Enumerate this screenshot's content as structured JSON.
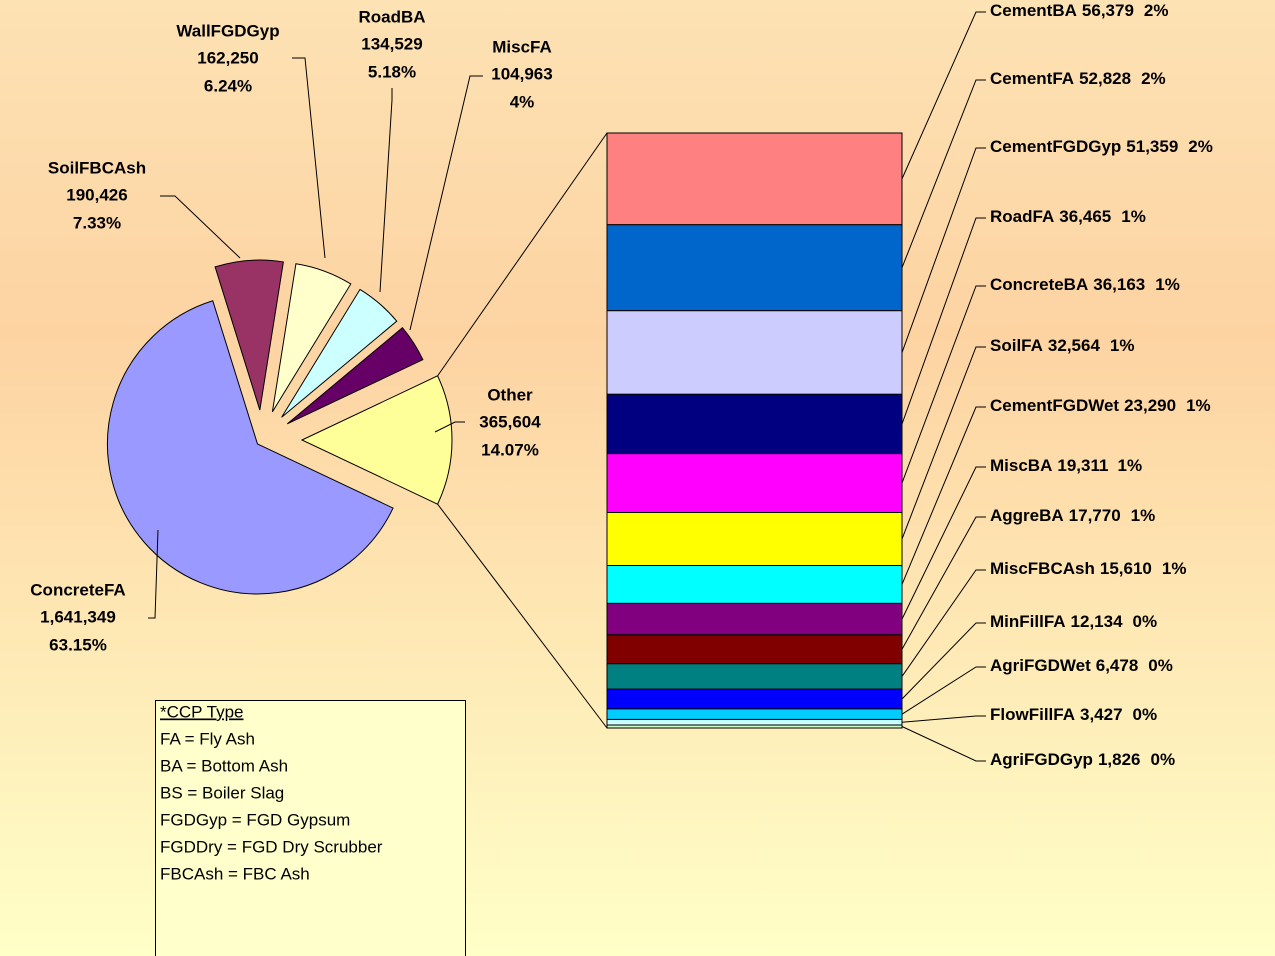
{
  "chart_data": {
    "type": "pie",
    "pie": {
      "labels": [
        "ConcreteFA",
        "SoilFBCAsh",
        "WallFGDGyp",
        "RoadBA",
        "MiscFA",
        "Other"
      ],
      "values": [
        1641349,
        190426,
        162250,
        134529,
        104963,
        365604
      ],
      "value_labels": [
        "1,641,349",
        "190,426",
        "162,250",
        "134,529",
        "104,963",
        "365,604"
      ],
      "percent_labels": [
        "63.15%",
        "7.33%",
        "6.24%",
        "5.18%",
        "4%",
        "14.07%"
      ],
      "colors": [
        "#9999ff",
        "#993366",
        "#ffffcc",
        "#ccffff",
        "#660066",
        "#ffff99"
      ]
    },
    "bar": {
      "labels": [
        "CementBA",
        "CementFA",
        "CementFGDGyp",
        "RoadFA",
        "ConcreteBA",
        "SoilFA",
        "CementFGDWet",
        "MiscBA",
        "AggreBA",
        "MiscFBCAsh",
        "MinFillFA",
        "AgriFGDWet",
        "FlowFillFA",
        "AgriFGDGyp"
      ],
      "values": [
        56379,
        52828,
        51359,
        36465,
        36163,
        32564,
        23290,
        19311,
        17770,
        15610,
        12134,
        6478,
        3427,
        1826
      ],
      "value_labels": [
        "56,379",
        "52,828",
        "51,359",
        "36,465",
        "36,163",
        "32,564",
        "23,290",
        "19,311",
        "17,770",
        "15,610",
        "12,134",
        "6,478",
        "3,427",
        "1,826"
      ],
      "percent_labels": [
        "2%",
        "2%",
        "2%",
        "1%",
        "1%",
        "1%",
        "1%",
        "1%",
        "1%",
        "1%",
        "0%",
        "0%",
        "0%",
        "0%"
      ],
      "colors": [
        "#ff8080",
        "#0066cc",
        "#ccccff",
        "#000080",
        "#ff00ff",
        "#ffff00",
        "#00ffff",
        "#800080",
        "#800000",
        "#008080",
        "#0000ff",
        "#00ccff",
        "#ccffff",
        "#ccffcc"
      ]
    }
  },
  "legend_note": {
    "title": "*CCP Type",
    "lines": [
      "FA = Fly Ash",
      "BA = Bottom Ash",
      "BS = Boiler Slag",
      "FGDGyp = FGD Gypsum",
      "FGDDry = FGD Dry Scrubber",
      "FBCAsh = FBC Ash"
    ]
  }
}
